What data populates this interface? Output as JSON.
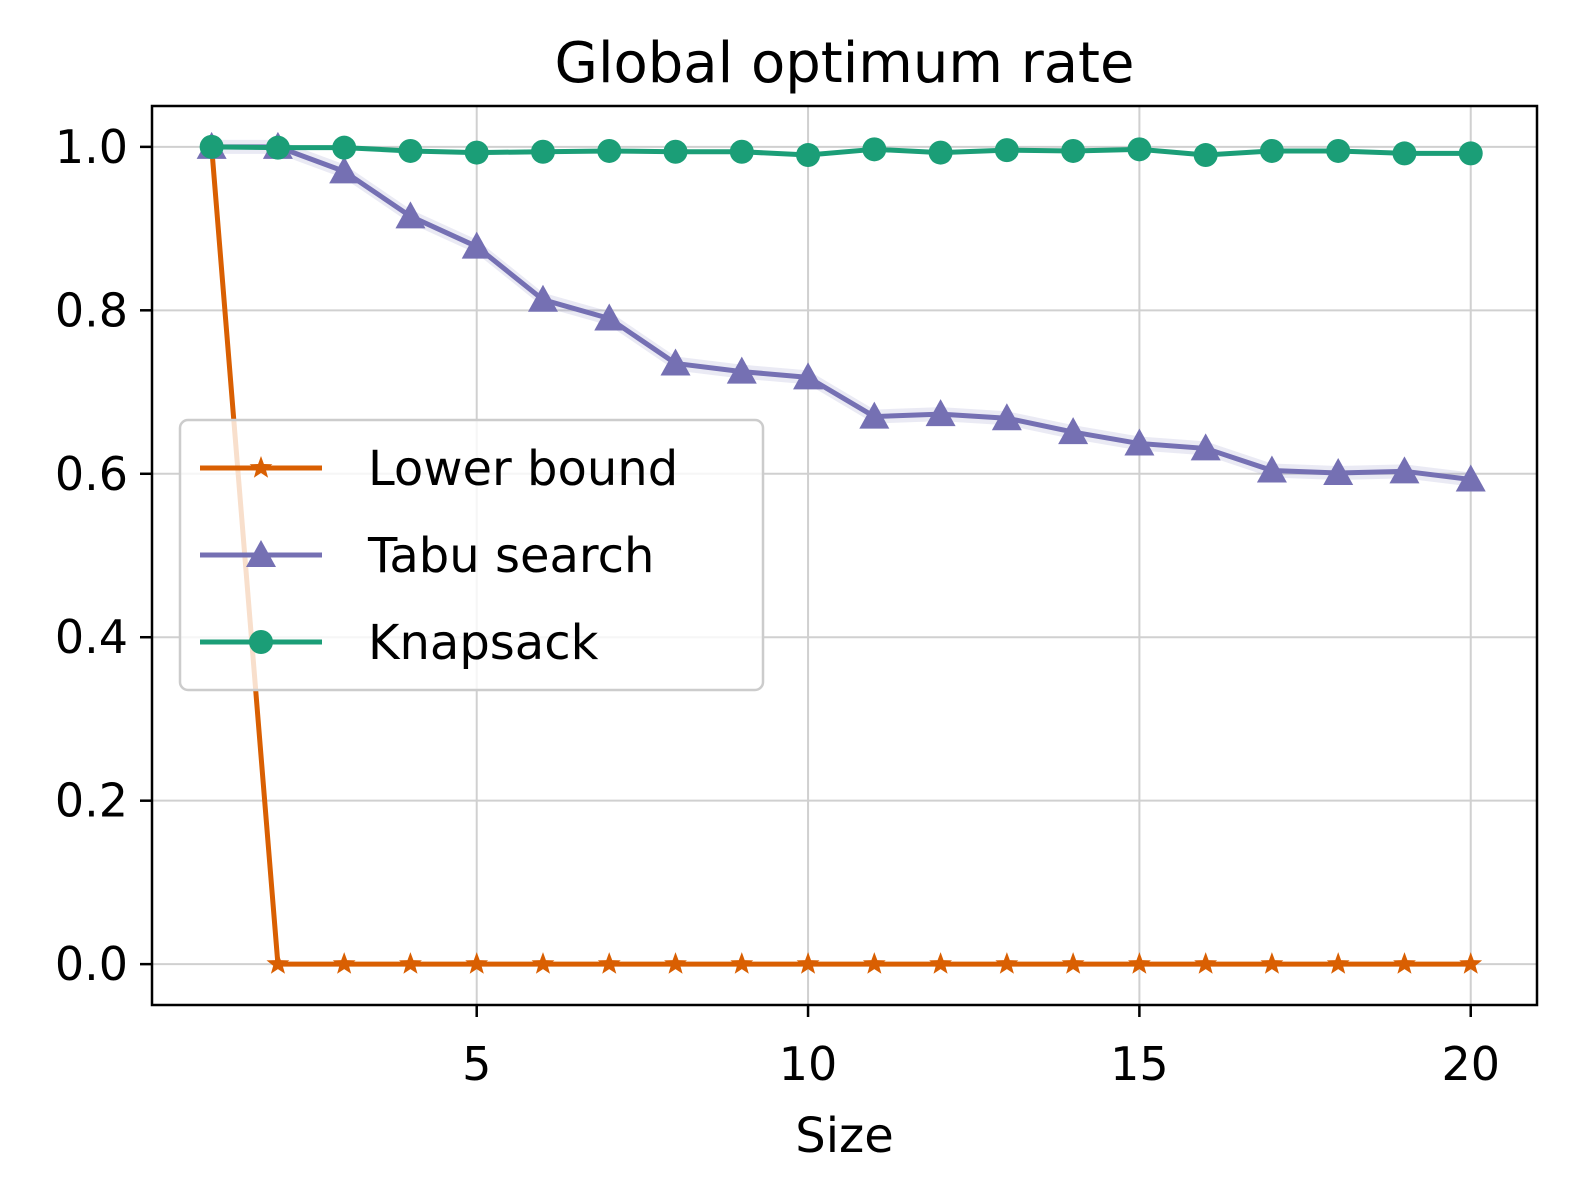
{
  "chart_data": {
    "type": "line",
    "title": "Global optimum rate",
    "xlabel": "Size",
    "ylabel": "",
    "xlim": [
      0.1,
      21.0
    ],
    "ylim": [
      -0.05,
      1.05
    ],
    "xticks": [
      5,
      10,
      15,
      20
    ],
    "yticks": [
      0.0,
      0.2,
      0.4,
      0.6,
      0.8,
      1.0
    ],
    "xtick_labels": [
      "5",
      "10",
      "15",
      "20"
    ],
    "ytick_labels": [
      "0.0",
      "0.2",
      "0.4",
      "0.6",
      "0.8",
      "1.0"
    ],
    "grid": true,
    "legend_position": "center-left",
    "x": [
      1,
      2,
      3,
      4,
      5,
      6,
      7,
      8,
      9,
      10,
      11,
      12,
      13,
      14,
      15,
      16,
      17,
      18,
      19,
      20
    ],
    "series": [
      {
        "name": "Lower bound",
        "color": "#d95f02",
        "marker": "star",
        "values": [
          1.0,
          0.0,
          0.0,
          0.0,
          0.0,
          0.0,
          0.0,
          0.0,
          0.0,
          0.0,
          0.0,
          0.0,
          0.0,
          0.0,
          0.0,
          0.0,
          0.0,
          0.0,
          0.0,
          0.0
        ]
      },
      {
        "name": "Tabu search",
        "color": "#7570b3",
        "marker": "triangle",
        "values": [
          1.0,
          1.0,
          0.97,
          0.915,
          0.878,
          0.813,
          0.79,
          0.735,
          0.725,
          0.718,
          0.67,
          0.673,
          0.668,
          0.651,
          0.637,
          0.631,
          0.604,
          0.601,
          0.603,
          0.593
        ]
      },
      {
        "name": "Knapsack",
        "color": "#1b9e77",
        "marker": "circle",
        "values": [
          1.0,
          0.999,
          0.999,
          0.995,
          0.993,
          0.994,
          0.995,
          0.994,
          0.994,
          0.99,
          0.997,
          0.993,
          0.996,
          0.995,
          0.997,
          0.99,
          0.995,
          0.995,
          0.992,
          0.992
        ]
      }
    ]
  }
}
